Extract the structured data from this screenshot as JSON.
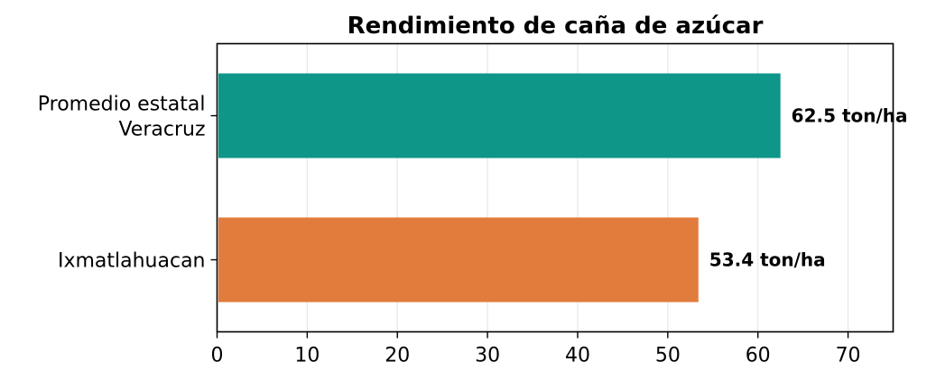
{
  "chart_data": {
    "type": "bar",
    "orientation": "horizontal",
    "title": "Rendimiento de caña de azúcar",
    "xlabel": "",
    "ylabel": "",
    "categories": [
      "Promedio estatal\nVeracruz",
      "Ixmatlahuacan"
    ],
    "values": [
      62.5,
      53.4
    ],
    "data_labels": [
      "62.5 ton/ha",
      "53.4 ton/ha"
    ],
    "colors": [
      "#0e9688",
      "#e27c3c"
    ],
    "xlim": [
      0,
      75
    ],
    "xticks": [
      0,
      10,
      20,
      30,
      40,
      50,
      60,
      70
    ],
    "grid": true,
    "legend": "none"
  }
}
